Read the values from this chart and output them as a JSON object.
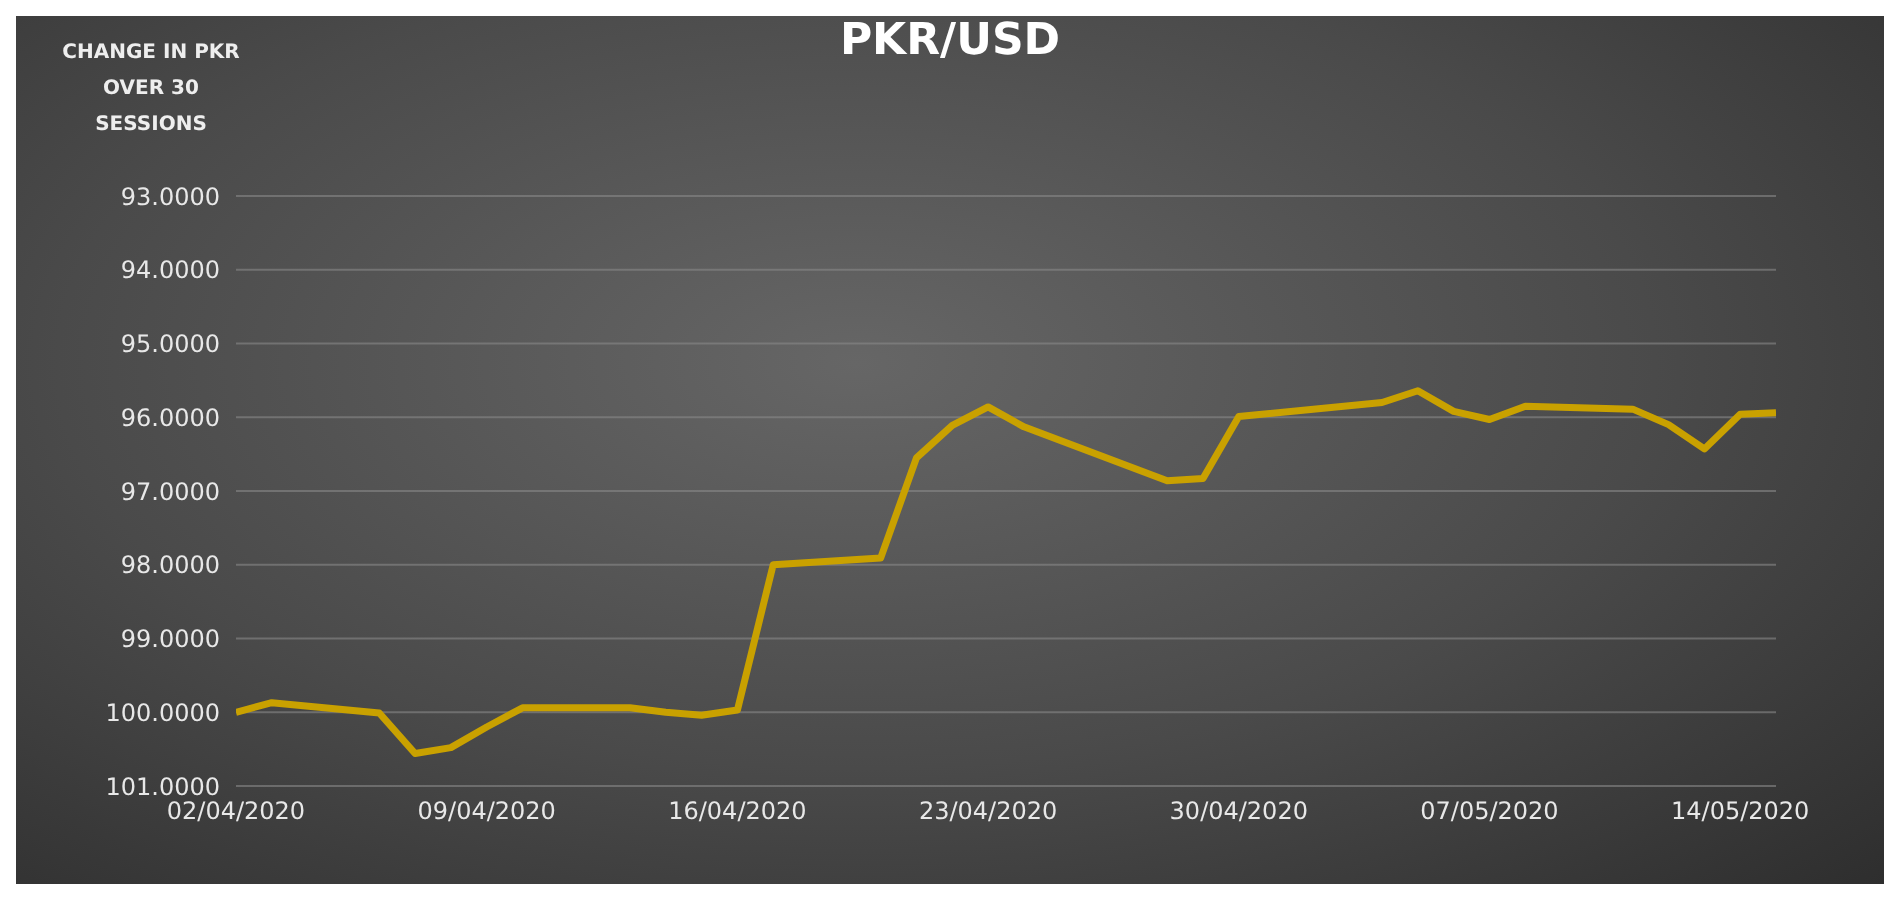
{
  "chart_data": {
    "type": "line",
    "title": "PKR/USD",
    "ylabel": "CHANGE IN PKR OVER 30 SESSIONS",
    "x": [
      "2020-04-02",
      "2020-04-03",
      "2020-04-06",
      "2020-04-07",
      "2020-04-08",
      "2020-04-09",
      "2020-04-10",
      "2020-04-13",
      "2020-04-14",
      "2020-04-15",
      "2020-04-16",
      "2020-04-17",
      "2020-04-20",
      "2020-04-21",
      "2020-04-22",
      "2020-04-23",
      "2020-04-24",
      "2020-04-28",
      "2020-04-29",
      "2020-04-30",
      "2020-05-04",
      "2020-05-05",
      "2020-05-06",
      "2020-05-07",
      "2020-05-08",
      "2020-05-11",
      "2020-05-12",
      "2020-05-13",
      "2020-05-14",
      "2020-05-15"
    ],
    "series": [
      {
        "color": "#c9a100",
        "values": [
          100.0,
          99.87,
          100.01,
          100.56,
          100.48,
          100.2,
          99.94,
          99.94,
          100.0,
          100.04,
          99.97,
          98.0,
          97.91,
          96.55,
          96.11,
          95.86,
          96.13,
          96.86,
          96.83,
          95.99,
          95.8,
          95.64,
          95.92,
          96.03,
          95.85,
          95.89,
          96.1,
          96.43,
          95.96,
          95.94
        ]
      }
    ],
    "xlim": [
      "2020-04-02",
      "2020-05-15"
    ],
    "xticks": [
      {
        "value": "2020-04-02",
        "label": "02/04/2020"
      },
      {
        "value": "2020-04-09",
        "label": "09/04/2020"
      },
      {
        "value": "2020-04-16",
        "label": "16/04/2020"
      },
      {
        "value": "2020-04-23",
        "label": "23/04/2020"
      },
      {
        "value": "2020-04-30",
        "label": "30/04/2020"
      },
      {
        "value": "2020-05-07",
        "label": "07/05/2020"
      },
      {
        "value": "2020-05-14",
        "label": "14/05/2020"
      }
    ],
    "ylim": [
      101,
      93
    ],
    "yticks": [
      {
        "value": 93,
        "label": "93.0000"
      },
      {
        "value": 94,
        "label": "94.0000"
      },
      {
        "value": 95,
        "label": "95.0000"
      },
      {
        "value": 96,
        "label": "96.0000"
      },
      {
        "value": 97,
        "label": "97.0000"
      },
      {
        "value": 98,
        "label": "98.0000"
      },
      {
        "value": 99,
        "label": "99.0000"
      },
      {
        "value": 100,
        "label": "100.0000"
      },
      {
        "value": 101,
        "label": "101.0000"
      }
    ],
    "grid": "y",
    "marker": "none",
    "line_style": "solid"
  }
}
